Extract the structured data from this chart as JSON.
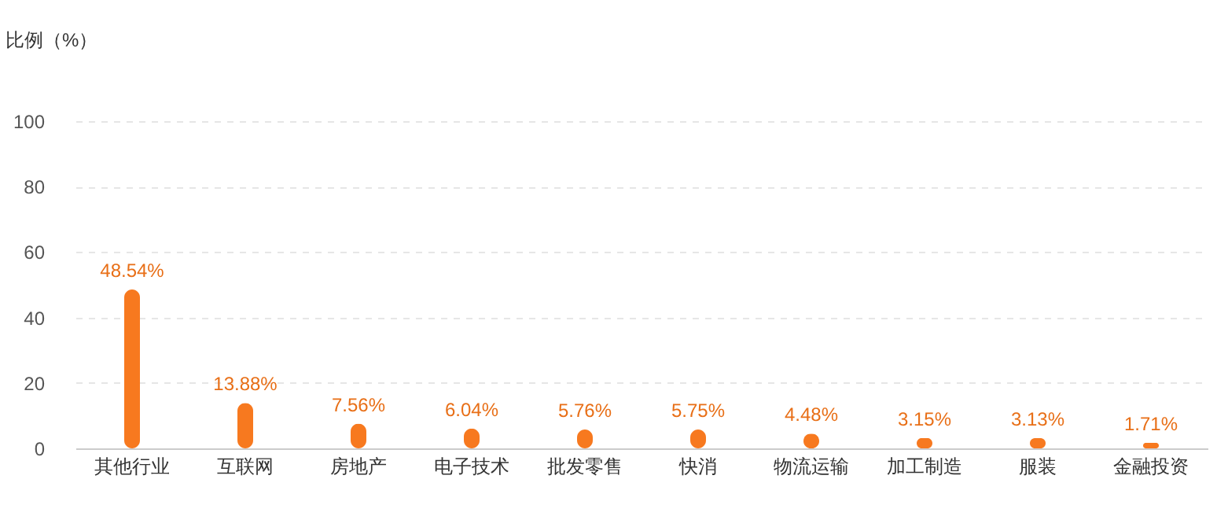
{
  "chart_data": {
    "type": "bar",
    "ylabel": "比例（%）",
    "categories": [
      "其他行业",
      "互联网",
      "房地产",
      "电子技术",
      "批发零售",
      "快消",
      "物流运输",
      "加工制造",
      "服装",
      "金融投资"
    ],
    "values": [
      48.54,
      13.88,
      7.56,
      6.04,
      5.76,
      5.75,
      4.48,
      3.15,
      3.13,
      1.71
    ],
    "value_labels": [
      "48.54%",
      "13.88%",
      "7.56%",
      "6.04%",
      "5.76%",
      "5.75%",
      "4.48%",
      "3.15%",
      "3.13%",
      "1.71%"
    ],
    "color": "#f7791f",
    "ylim": [
      0,
      100
    ],
    "yticks": [
      0,
      20,
      40,
      60,
      80,
      100
    ],
    "grid": "y"
  }
}
